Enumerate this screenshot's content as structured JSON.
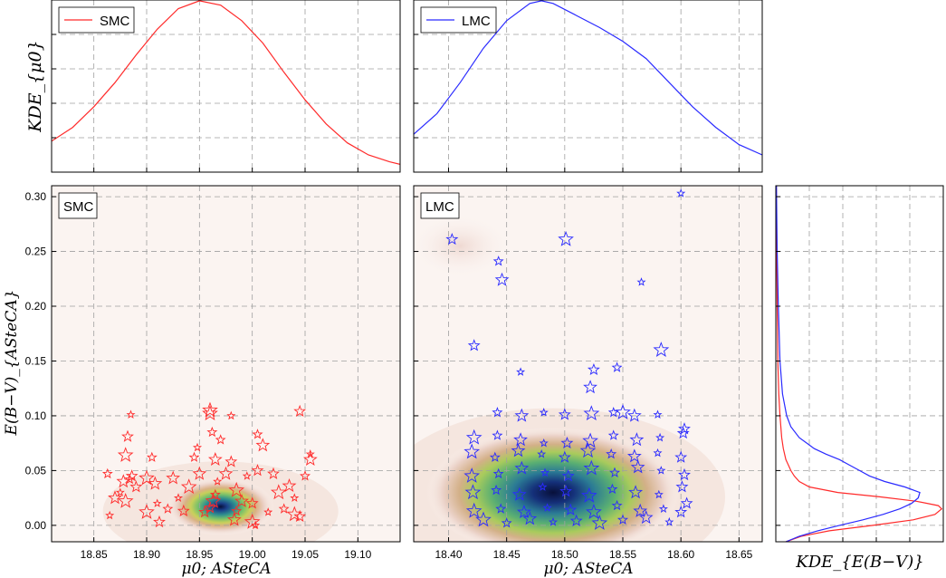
{
  "colors": {
    "smc": "#ff2a2a",
    "lmc": "#2a2aff",
    "grid": "#a0a0a0",
    "frame": "#000000"
  },
  "labels": {
    "kde_mu0_ylabel": "KDE_{μ0}",
    "ebv_ylabel": "E(B−V)_{ASteCA}",
    "mu0_xlabel": "μ0; ASteCA",
    "kde_ebv_xlabel": "KDE_{E(B−V)}"
  },
  "chart_data": [
    {
      "panel": "top-left",
      "type": "line",
      "legend": [
        "SMC"
      ],
      "legend_location": "top-left",
      "xlim": [
        18.81,
        19.14
      ],
      "ylim": [
        0,
        1.0
      ],
      "xticks": [
        18.85,
        18.9,
        18.95,
        19.0,
        19.05,
        19.1
      ],
      "ylabel": "KDE_{μ0}",
      "series": [
        {
          "name": "SMC",
          "x": [
            18.81,
            18.83,
            18.85,
            18.87,
            18.89,
            18.91,
            18.93,
            18.95,
            18.97,
            18.99,
            19.01,
            19.03,
            19.05,
            19.07,
            19.09,
            19.11,
            19.13,
            19.14
          ],
          "y": [
            0.18,
            0.26,
            0.38,
            0.52,
            0.68,
            0.83,
            0.95,
            0.995,
            0.97,
            0.88,
            0.75,
            0.58,
            0.42,
            0.28,
            0.17,
            0.1,
            0.06,
            0.045
          ]
        }
      ]
    },
    {
      "panel": "top-middle",
      "type": "line",
      "legend": [
        "LMC"
      ],
      "legend_location": "top-left",
      "xlim": [
        18.37,
        18.67
      ],
      "ylim": [
        0,
        1.0
      ],
      "xticks": [
        18.4,
        18.45,
        18.5,
        18.55,
        18.6,
        18.65
      ],
      "series": [
        {
          "name": "LMC",
          "x": [
            18.37,
            18.39,
            18.41,
            18.43,
            18.45,
            18.47,
            18.48,
            18.49,
            18.51,
            18.53,
            18.55,
            18.57,
            18.59,
            18.61,
            18.63,
            18.65,
            18.67
          ],
          "y": [
            0.22,
            0.34,
            0.52,
            0.72,
            0.88,
            0.98,
            0.995,
            0.98,
            0.91,
            0.84,
            0.76,
            0.66,
            0.52,
            0.38,
            0.26,
            0.16,
            0.1
          ]
        }
      ]
    },
    {
      "panel": "bottom-left",
      "type": "scatter",
      "title": "SMC",
      "xlim": [
        18.81,
        19.14
      ],
      "ylim": [
        -0.015,
        0.31
      ],
      "xticks": [
        18.85,
        18.9,
        18.95,
        19.0,
        19.05,
        19.1
      ],
      "xlabel": "μ0; ASteCA",
      "yticks": [
        0.0,
        0.05,
        0.1,
        0.15,
        0.2,
        0.25,
        0.3
      ],
      "ylabel": "E(B−V)_{ASteCA}",
      "density_peak": [
        18.97,
        0.017
      ],
      "series": [
        {
          "name": "SMC",
          "x": [
            18.885,
            18.882,
            18.88,
            18.884,
            18.878,
            18.875,
            18.886,
            18.88,
            18.863,
            18.87,
            18.865,
            18.89,
            18.9,
            18.905,
            18.908,
            18.91,
            18.912,
            18.9,
            18.92,
            18.925,
            18.93,
            18.935,
            18.94,
            18.945,
            18.95,
            18.948,
            18.955,
            18.96,
            18.962,
            18.965,
            18.967,
            18.96,
            18.963,
            18.97,
            18.975,
            18.98,
            18.98,
            18.985,
            18.985,
            18.99,
            18.995,
            19.0,
            19.0,
            19.005,
            19.01,
            19.015,
            19.02,
            19.025,
            19.03,
            19.035,
            19.04,
            19.045,
            19.04,
            19.05,
            19.055,
            19.055,
            19.045,
            18.96,
            18.965,
            18.983,
            19.003,
            19.005
          ],
          "y": [
            0.101,
            0.081,
            0.064,
            0.042,
            0.04,
            0.03,
            0.045,
            0.022,
            0.047,
            0.025,
            0.009,
            0.035,
            0.043,
            0.062,
            0.038,
            0.02,
            0.003,
            0.012,
            0.015,
            0.043,
            0.025,
            0.013,
            0.035,
            0.062,
            0.047,
            0.071,
            0.012,
            0.105,
            0.085,
            0.06,
            0.04,
            0.016,
            0.022,
            0.078,
            0.047,
            0.1,
            0.058,
            0.032,
            0.013,
            0.022,
            0.045,
            0.02,
            0.003,
            0.083,
            0.073,
            0.012,
            0.047,
            0.03,
            0.015,
            0.036,
            0.025,
            0.104,
            0.01,
            0.045,
            0.06,
            0.065,
            0.008,
            0.102,
            0.028,
            0.005,
            0.0,
            0.05
          ]
        }
      ]
    },
    {
      "panel": "bottom-middle",
      "type": "scatter",
      "title": "LMC",
      "xlim": [
        18.37,
        18.67
      ],
      "ylim": [
        -0.015,
        0.31
      ],
      "xticks": [
        18.4,
        18.45,
        18.5,
        18.55,
        18.6,
        18.65
      ],
      "xlabel": "μ0; ASteCA",
      "density_peak": [
        18.49,
        0.03
      ],
      "series": [
        {
          "name": "LMC",
          "x": [
            18.6,
            18.403,
            18.501,
            18.443,
            18.446,
            18.566,
            18.422,
            18.583,
            18.545,
            18.522,
            18.462,
            18.525,
            18.55,
            18.442,
            18.463,
            18.482,
            18.5,
            18.523,
            18.542,
            18.56,
            18.58,
            18.603,
            18.422,
            18.442,
            18.462,
            18.482,
            18.502,
            18.522,
            18.542,
            18.562,
            18.582,
            18.602,
            18.42,
            18.44,
            18.46,
            18.48,
            18.5,
            18.52,
            18.54,
            18.56,
            18.58,
            18.6,
            18.42,
            18.443,
            18.463,
            18.483,
            18.503,
            18.523,
            18.543,
            18.563,
            18.583,
            18.603,
            18.421,
            18.441,
            18.461,
            18.481,
            18.501,
            18.521,
            18.541,
            18.561,
            18.581,
            18.601,
            18.422,
            18.445,
            18.465,
            18.485,
            18.505,
            18.525,
            18.545,
            18.565,
            18.585,
            18.6,
            18.43,
            18.45,
            18.47,
            18.49,
            18.51,
            18.53,
            18.55,
            18.57,
            18.59,
            18.605
          ],
          "y": [
            0.303,
            0.261,
            0.261,
            0.241,
            0.224,
            0.222,
            0.164,
            0.16,
            0.144,
            0.126,
            0.14,
            0.142,
            0.103,
            0.103,
            0.1,
            0.103,
            0.101,
            0.102,
            0.103,
            0.1,
            0.101,
            0.088,
            0.08,
            0.082,
            0.078,
            0.075,
            0.075,
            0.077,
            0.082,
            0.078,
            0.08,
            0.084,
            0.067,
            0.062,
            0.068,
            0.065,
            0.062,
            0.068,
            0.065,
            0.063,
            0.066,
            0.062,
            0.045,
            0.047,
            0.052,
            0.048,
            0.045,
            0.052,
            0.048,
            0.053,
            0.05,
            0.046,
            0.03,
            0.032,
            0.028,
            0.035,
            0.031,
            0.027,
            0.033,
            0.03,
            0.028,
            0.035,
            0.013,
            0.015,
            0.012,
            0.016,
            0.014,
            0.012,
            0.018,
            0.013,
            0.015,
            0.012,
            0.005,
            0.002,
            0.006,
            0.003,
            0.004,
            0.002,
            0.005,
            0.007,
            0.003,
            0.02
          ]
        }
      ]
    },
    {
      "panel": "bottom-right",
      "type": "line",
      "orientation": "horizontal",
      "xlabel": "KDE_{E(B−V)}",
      "ylim": [
        -0.015,
        0.31
      ],
      "xlim": [
        0,
        1.0
      ],
      "series": [
        {
          "name": "SMC",
          "y": [
            -0.015,
            -0.01,
            -0.005,
            0.0,
            0.005,
            0.01,
            0.015,
            0.018,
            0.022,
            0.026,
            0.03,
            0.035,
            0.04,
            0.045,
            0.05,
            0.055,
            0.06,
            0.07,
            0.08,
            0.1,
            0.12,
            0.15,
            0.2,
            0.25,
            0.31
          ],
          "x": [
            0.06,
            0.15,
            0.32,
            0.58,
            0.82,
            0.95,
            0.99,
            0.97,
            0.84,
            0.62,
            0.37,
            0.2,
            0.14,
            0.11,
            0.09,
            0.075,
            0.06,
            0.045,
            0.035,
            0.025,
            0.018,
            0.012,
            0.008,
            0.005,
            0.003
          ]
        },
        {
          "name": "LMC",
          "y": [
            -0.015,
            -0.01,
            -0.005,
            0.0,
            0.005,
            0.01,
            0.015,
            0.02,
            0.025,
            0.03,
            0.035,
            0.04,
            0.045,
            0.05,
            0.055,
            0.06,
            0.065,
            0.07,
            0.08,
            0.09,
            0.1,
            0.12,
            0.15,
            0.2,
            0.25,
            0.31
          ],
          "x": [
            0.06,
            0.14,
            0.25,
            0.38,
            0.52,
            0.64,
            0.74,
            0.81,
            0.85,
            0.86,
            0.77,
            0.65,
            0.56,
            0.5,
            0.44,
            0.38,
            0.3,
            0.23,
            0.14,
            0.09,
            0.065,
            0.04,
            0.025,
            0.015,
            0.008,
            0.004
          ]
        }
      ]
    }
  ]
}
